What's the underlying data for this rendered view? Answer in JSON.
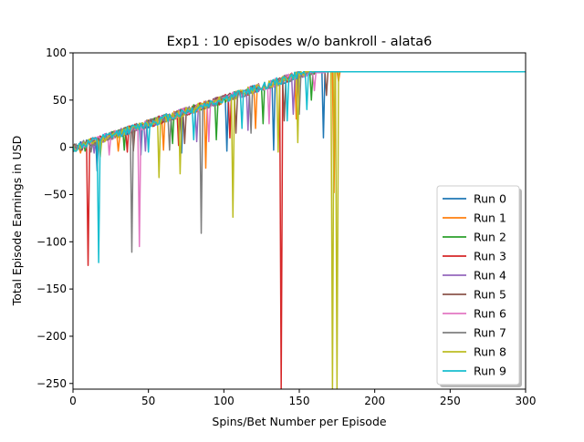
{
  "chart_data": {
    "type": "line",
    "title": "Exp1 : 10 episodes w/o bankroll - alata6",
    "xlabel": "Spins/Bet Number per Episode",
    "ylabel": "Total Episode Earnings in USD",
    "xlim": [
      0,
      300
    ],
    "ylim": [
      -256,
      100
    ],
    "xticks": [
      0,
      50,
      100,
      150,
      200,
      250,
      300
    ],
    "yticks": [
      -250,
      -200,
      -150,
      -100,
      -50,
      0,
      50,
      100
    ],
    "xtick_labels": [
      "0",
      "50",
      "100",
      "150",
      "200",
      "250",
      "300"
    ],
    "ytick_labels": [
      "−250",
      "−200",
      "−150",
      "−100",
      "−50",
      "0",
      "50",
      "100"
    ],
    "grid": false,
    "legend_position": "lower-right",
    "target_value": 80,
    "series": [
      {
        "name": "Run 0",
        "color": "#1f77b4",
        "dips": [
          [
            16,
            -25
          ],
          [
            45,
            -8
          ],
          [
            72,
            -6
          ],
          [
            102,
            -4
          ],
          [
            133,
            -3
          ],
          [
            166,
            10
          ]
        ]
      },
      {
        "name": "Run 1",
        "color": "#ff7f0e",
        "dips": [
          [
            5,
            -6
          ],
          [
            30,
            -4
          ],
          [
            60,
            -3
          ],
          [
            88,
            -22
          ],
          [
            121,
            20
          ],
          [
            148,
            30
          ],
          [
            173,
            -48
          ],
          [
            176,
            70
          ]
        ]
      },
      {
        "name": "Run 2",
        "color": "#2ca02c",
        "dips": [
          [
            8,
            -4
          ],
          [
            34,
            -3
          ],
          [
            66,
            4
          ],
          [
            95,
            8
          ],
          [
            126,
            25
          ],
          [
            158,
            50
          ]
        ]
      },
      {
        "name": "Run 3",
        "color": "#d62728",
        "dips": [
          [
            10,
            -125
          ],
          [
            36,
            -5
          ],
          [
            70,
            2
          ],
          [
            104,
            10
          ],
          [
            138,
            -256
          ]
        ]
      },
      {
        "name": "Run 4",
        "color": "#9467bd",
        "dips": [
          [
            14,
            -6
          ],
          [
            48,
            -4
          ],
          [
            82,
            6
          ],
          [
            116,
            18
          ],
          [
            146,
            35
          ]
        ]
      },
      {
        "name": "Run 5",
        "color": "#8c564b",
        "dips": [
          [
            6,
            -3
          ],
          [
            40,
            -4
          ],
          [
            74,
            4
          ],
          [
            108,
            15
          ],
          [
            140,
            28
          ],
          [
            168,
            55
          ]
        ]
      },
      {
        "name": "Run 6",
        "color": "#e377c2",
        "dips": [
          [
            24,
            -8
          ],
          [
            44,
            -105
          ],
          [
            90,
            6
          ],
          [
            130,
            25
          ],
          [
            160,
            60
          ]
        ]
      },
      {
        "name": "Run 7",
        "color": "#7f7f7f",
        "dips": [
          [
            12,
            -5
          ],
          [
            39,
            -111
          ],
          [
            64,
            -3
          ],
          [
            85,
            -91
          ],
          [
            118,
            15
          ],
          [
            150,
            35
          ]
        ]
      },
      {
        "name": "Run 8",
        "color": "#bcbd22",
        "dips": [
          [
            18,
            -10
          ],
          [
            57,
            -32
          ],
          [
            71,
            -28
          ],
          [
            106,
            -74
          ],
          [
            136,
            -5
          ],
          [
            149,
            5
          ],
          [
            172,
            -256
          ],
          [
            175,
            -256
          ]
        ]
      },
      {
        "name": "Run 9",
        "color": "#17becf",
        "dips": [
          [
            2,
            -4
          ],
          [
            17,
            -122
          ],
          [
            50,
            -5
          ],
          [
            80,
            8
          ],
          [
            112,
            20
          ],
          [
            142,
            28
          ],
          [
            155,
            40
          ]
        ]
      }
    ]
  }
}
